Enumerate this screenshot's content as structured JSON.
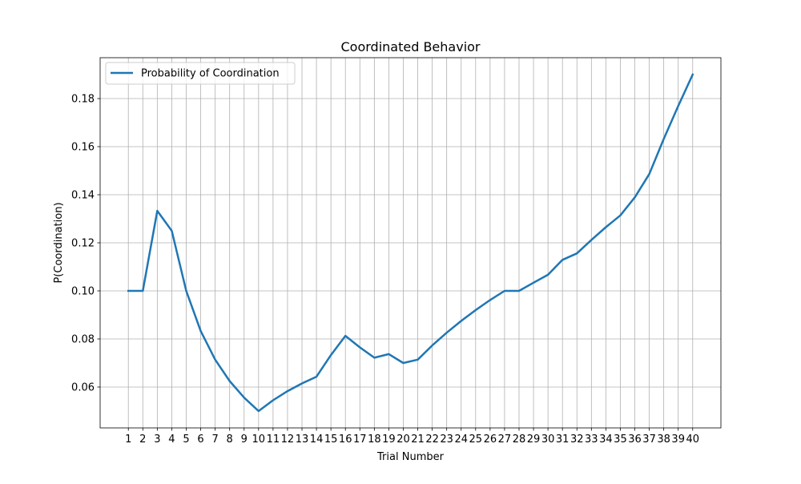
{
  "chart_data": {
    "type": "line",
    "title": "Coordinated Behavior",
    "xlabel": "Trial Number",
    "ylabel": "P(Coordination)",
    "x": [
      1,
      2,
      3,
      4,
      5,
      6,
      7,
      8,
      9,
      10,
      11,
      12,
      13,
      14,
      15,
      16,
      17,
      18,
      19,
      20,
      21,
      22,
      23,
      24,
      25,
      26,
      27,
      28,
      29,
      30,
      31,
      32,
      33,
      34,
      35,
      36,
      37,
      38,
      39,
      40
    ],
    "series": [
      {
        "name": "Probability of Coordination",
        "color": "#1f77b4",
        "values": [
          0.1,
          0.1,
          0.1333,
          0.125,
          0.1,
          0.0833,
          0.0714,
          0.0625,
          0.0556,
          0.05,
          0.0545,
          0.0583,
          0.0615,
          0.0643,
          0.0733,
          0.0813,
          0.0765,
          0.0722,
          0.0737,
          0.07,
          0.0714,
          0.0773,
          0.0826,
          0.0875,
          0.092,
          0.0962,
          0.1,
          0.1,
          0.1034,
          0.1067,
          0.1129,
          0.1156,
          0.1212,
          0.1265,
          0.1314,
          0.1389,
          0.1486,
          0.1632,
          0.1769,
          0.19
        ]
      }
    ],
    "xticks": [
      "1",
      "2",
      "3",
      "4",
      "5",
      "6",
      "7",
      "8",
      "9",
      "10",
      "11",
      "12",
      "13",
      "14",
      "15",
      "16",
      "17",
      "18",
      "19",
      "20",
      "21",
      "22",
      "23",
      "24",
      "25",
      "26",
      "27",
      "28",
      "29",
      "30",
      "31",
      "32",
      "33",
      "34",
      "35",
      "36",
      "37",
      "38",
      "39",
      "40"
    ],
    "yticks": [
      0.06,
      0.08,
      0.1,
      0.12,
      0.14,
      0.16,
      0.18
    ],
    "ytick_labels": [
      "0.06",
      "0.08",
      "0.10",
      "0.12",
      "0.14",
      "0.16",
      "0.18"
    ],
    "xlim": [
      -0.95,
      41.95
    ],
    "ylim": [
      0.043,
      0.197
    ],
    "grid": true,
    "legend_position": "upper left"
  }
}
